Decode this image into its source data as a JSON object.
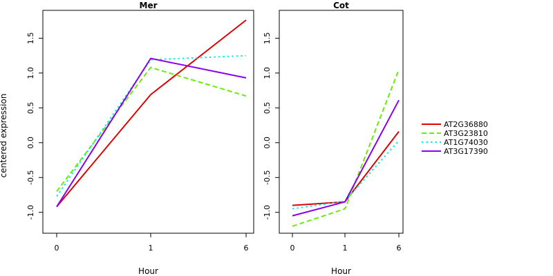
{
  "chart_data": [
    {
      "type": "line",
      "title": "Mer",
      "xlabel": "Hour",
      "ylabel": "centered expression",
      "x": [
        "0",
        "1",
        "6"
      ],
      "ylim": [
        -1.3,
        1.9
      ],
      "yticks": [
        -1.0,
        -0.5,
        0.0,
        0.5,
        1.0,
        1.5
      ],
      "ytick_labels": [
        "-1.0",
        "-0.5",
        "0.0",
        "0.5",
        "1.0",
        "1.5"
      ],
      "series": [
        {
          "name": "AT2G36880",
          "values": [
            -0.92,
            0.69,
            1.76
          ]
        },
        {
          "name": "AT3G23810",
          "values": [
            -0.7,
            1.08,
            0.67
          ]
        },
        {
          "name": "AT1G74030",
          "values": [
            -0.77,
            1.19,
            1.25
          ]
        },
        {
          "name": "AT3G17390",
          "values": [
            -0.92,
            1.21,
            0.93
          ]
        }
      ]
    },
    {
      "type": "line",
      "title": "Cot",
      "xlabel": "Hour",
      "x": [
        "0",
        "1",
        "6"
      ],
      "ylim": [
        -1.3,
        1.9
      ],
      "yticks": [
        -1.0,
        -0.5,
        0.0,
        0.5,
        1.0,
        1.5
      ],
      "ytick_labels": [
        "-1.0",
        "-0.5",
        "0.0",
        "0.5",
        "1.0",
        "1.5"
      ],
      "series": [
        {
          "name": "AT2G36880",
          "values": [
            -0.9,
            -0.85,
            0.16
          ]
        },
        {
          "name": "AT3G23810",
          "values": [
            -1.2,
            -0.95,
            1.05
          ]
        },
        {
          "name": "AT1G74030",
          "values": [
            -0.95,
            -0.84,
            0.03
          ]
        },
        {
          "name": "AT3G17390",
          "values": [
            -1.05,
            -0.85,
            0.61
          ]
        }
      ]
    }
  ],
  "legend": {
    "placement": "right",
    "items": [
      {
        "name": "AT2G36880",
        "color": "#dd0000",
        "dash": "solid"
      },
      {
        "name": "AT3G23810",
        "color": "#66ee00",
        "dash": "dashed"
      },
      {
        "name": "AT1G74030",
        "color": "#00eeee",
        "dash": "dotted"
      },
      {
        "name": "AT3G17390",
        "color": "#8800ee",
        "dash": "solid"
      }
    ]
  }
}
